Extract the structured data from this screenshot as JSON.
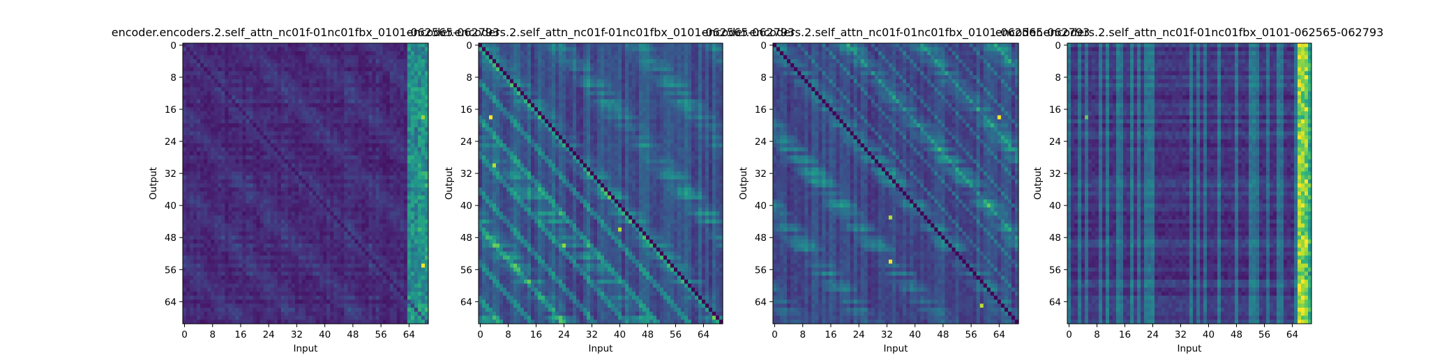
{
  "figure": {
    "background": "#ffffff",
    "colormap": "viridis"
  },
  "chart_data": [
    {
      "type": "heatmap",
      "title": "encoder.encoders.2.self_attn_nc01f-01nc01fbx_0101-062565-062793",
      "xlabel": "Input",
      "ylabel": "Output",
      "xticks": [
        "0",
        "8",
        "16",
        "24",
        "32",
        "40",
        "48",
        "56",
        "64"
      ],
      "yticks": [
        "0",
        "8",
        "16",
        "24",
        "32",
        "40",
        "48",
        "56",
        "64"
      ],
      "grid": false,
      "matrix_size": [
        70,
        70
      ],
      "range": [
        0,
        1
      ],
      "description": "mostly dark, faint diagonals, bright column band on right edge"
    },
    {
      "type": "heatmap",
      "title": "encoder.encoders.2.self_attn_nc01f-01nc01fbx_0101-062565-062793",
      "xlabel": "Input",
      "ylabel": "Output",
      "xticks": [
        "0",
        "8",
        "16",
        "24",
        "32",
        "40",
        "48",
        "56",
        "64"
      ],
      "yticks": [
        "0",
        "8",
        "16",
        "24",
        "32",
        "40",
        "48",
        "56",
        "64"
      ],
      "grid": false,
      "matrix_size": [
        70,
        70
      ],
      "range": [
        0,
        1
      ],
      "description": "strong dark main diagonal, bright diagonal stripes"
    },
    {
      "type": "heatmap",
      "title": "encoder.encoders.2.self_attn_nc01f-01nc01fbx_0101-062565-062793",
      "xlabel": "Input",
      "ylabel": "Output",
      "xticks": [
        "0",
        "8",
        "16",
        "24",
        "32",
        "40",
        "48",
        "56",
        "64"
      ],
      "yticks": [
        "0",
        "8",
        "16",
        "24",
        "32",
        "40",
        "48",
        "56",
        "64"
      ],
      "grid": false,
      "matrix_size": [
        70,
        70
      ],
      "range": [
        0,
        1
      ],
      "description": "diagonal stripe texture with dark main diagonal"
    },
    {
      "type": "heatmap",
      "title": "encoder.encoders.2.self_attn_nc01f-01nc01fbx_0101-062565-062793",
      "xlabel": "Input",
      "ylabel": "Output",
      "xticks": [
        "0",
        "8",
        "16",
        "24",
        "32",
        "40",
        "48",
        "56",
        "64"
      ],
      "yticks": [
        "0",
        "8",
        "16",
        "24",
        "32",
        "40",
        "48",
        "56",
        "64"
      ],
      "grid": false,
      "matrix_size": [
        70,
        70
      ],
      "range": [
        0,
        1
      ],
      "description": "vertical column bands, bright right edge"
    }
  ]
}
